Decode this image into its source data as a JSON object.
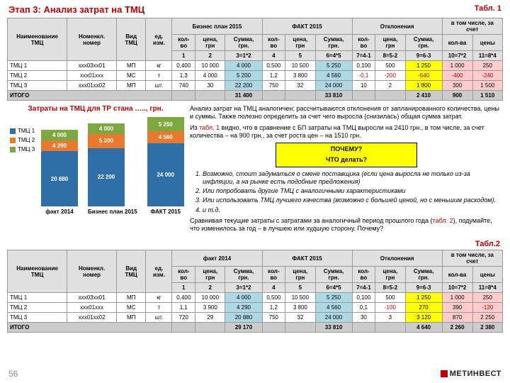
{
  "title": "Этап 3: Анализ затрат на ТМЦ",
  "tab1": "Табл. 1",
  "tab2": "Табл.2",
  "page": "56",
  "logo": "МЕТИНВЕСТ",
  "colors": {
    "c1": "#2f6fa8",
    "c2": "#e8792d",
    "c3": "#7da840"
  },
  "t1": {
    "name": "Наименование ТМЦ",
    "cols": [
      "Номенкл. номер",
      "Вид ТМЦ",
      "ед. изм."
    ],
    "groups": [
      "Бизнес план 2015",
      "ФАКТ 2015",
      "Отклонения"
    ],
    "sub": [
      "кол-во",
      "цена, грн",
      "Сумма, грн."
    ],
    "incl": "в том числе, за счет",
    "incl_sub": [
      "кол-ва",
      "цены"
    ],
    "nums": [
      "1",
      "2",
      "3=1*2",
      "4",
      "5",
      "6=4*5",
      "7=4-1",
      "8=5-2",
      "9=6-3",
      "10=7*2",
      "11=8*4"
    ],
    "rows": [
      {
        "n": "ТМЦ 1",
        "nom": "ххх03хх01",
        "v": "МП",
        "e": "кг",
        "d": [
          "0,400",
          "10 000",
          "4 000",
          "0,500",
          "10 500",
          "5 250",
          "0,100",
          "500",
          "1 250",
          "1 000",
          "250"
        ]
      },
      {
        "n": "ТМЦ 2",
        "nom": "ххх01ххх",
        "v": "МС",
        "e": "т",
        "d": [
          "1,3",
          "4 000",
          "5 200",
          "1,2",
          "3 800",
          "4 560",
          "-0,1",
          "-200",
          "-640",
          "-400",
          "-240"
        ]
      },
      {
        "n": "ТМЦ 3",
        "nom": "ххх01хх02",
        "v": "МП",
        "e": "шт.",
        "d": [
          "740",
          "30",
          "22 200",
          "750",
          "32",
          "24 000",
          "10",
          "2",
          "1 800",
          "300",
          "1 500"
        ]
      }
    ],
    "itogo": "ИТОГО",
    "isum": [
      "31 400",
      "33 810",
      "2 410",
      "900",
      "1 510"
    ]
  },
  "t2": {
    "groups": [
      "факт 2014",
      "ФАКТ 2015",
      "Отклонения"
    ],
    "rows": [
      {
        "n": "ТМЦ 1",
        "nom": "ххх03хх01",
        "v": "МП",
        "e": "кг",
        "d": [
          "0,400",
          "10 000",
          "4 000",
          "0,500",
          "10 500",
          "5 250",
          "0,100",
          "500",
          "1 250",
          "1 000",
          "250"
        ]
      },
      {
        "n": "ТМЦ 2",
        "nom": "ххх01ххх",
        "v": "МС",
        "e": "т",
        "d": [
          "1,1",
          "3 900",
          "4 290",
          "1,2",
          "3 800",
          "4 560",
          "0,1",
          "-100",
          "270",
          "390",
          "-120"
        ]
      },
      {
        "n": "ТМЦ 3",
        "nom": "ххх01хх02",
        "v": "МП",
        "e": "шт.",
        "d": [
          "720",
          "29",
          "20 880",
          "750",
          "32",
          "24 000",
          "30",
          "3",
          "3 120",
          "870",
          "2 250"
        ]
      }
    ],
    "isum": [
      "29 170",
      "33 810",
      "4 640",
      "2 260",
      "2 380"
    ]
  },
  "chart": {
    "title": "Затраты на ТМЦ для ТР стана ….., грн.",
    "legend": [
      "ТМЦ 1",
      "ТМЦ 2",
      "ТМЦ 3"
    ],
    "bars": [
      {
        "label": "факт 2014",
        "v": [
          20880,
          4290,
          4000
        ],
        "text": [
          "20 880",
          "4 290",
          "4 000"
        ]
      },
      {
        "label": "Бизнес план 2015",
        "v": [
          22200,
          5200,
          4000
        ],
        "text": [
          "22 200",
          "5 200",
          "4 000"
        ]
      },
      {
        "label": "ФАКТ 2015",
        "v": [
          24000,
          4560,
          5250
        ],
        "text": [
          "24 000",
          "4 560",
          "5 250"
        ]
      }
    ]
  },
  "text": {
    "p1a": "Анализ затрат на ТМЦ аналогичен: рассчитываются отклонения от запланированного количества, цены и суммы. Также полезно определить за счет чего выросла (снизилась) общая сумма затрат.",
    "p1b_pre": "Из ",
    "p1b_red": "табл. 1",
    "p1b_post": " видно, что  в сравнение с БП затраты на ТМЦ выросли на 2410 грн., в том числе, за счет количества – на 900 грн., за счет роста цен – на 1510 грн.",
    "box1": "ПОЧЕМУ?",
    "box2": "ЧТО делать?",
    "li": [
      "Возможно, стоит задуматься о смене поставщика (если цена выросла не только из-за инфляции, а на рынке есть подобные предложения)",
      "Или попробовать другие ТМЦ с аналогичными характеристиками",
      "Или использовать ТМЦ лучшего качества (возможно с большей ценой, но с меньшим расходом).",
      "и т.д."
    ],
    "p2_pre": "Сравнивая текущие затраты с затратами за аналогичный период прошлого года (",
    "p2_red": "табл. 2",
    "p2_post": "), подумайте, что изменилось за год – в лучшею или худшую сторону. Почему?"
  }
}
